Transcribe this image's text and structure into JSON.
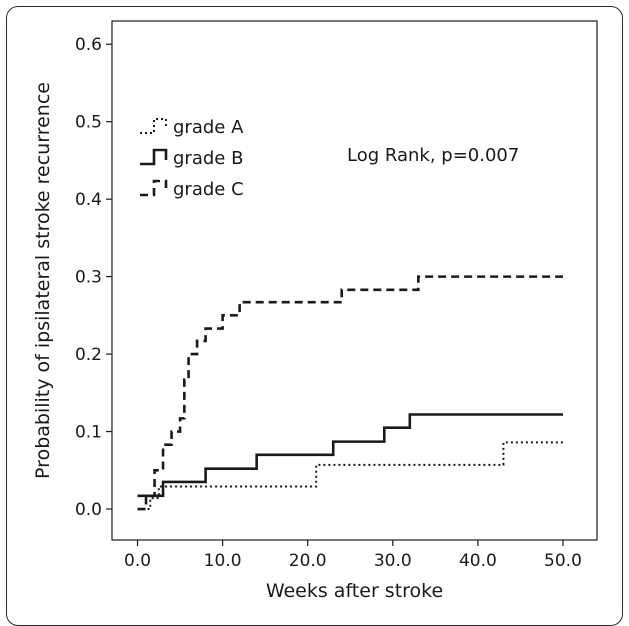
{
  "chart_data": {
    "type": "line",
    "subtype": "kaplan-meier-step",
    "xlabel": "Weeks after stroke",
    "ylabel": "Probability of ipsilateral stroke recurrence",
    "xlim": [
      -3,
      54
    ],
    "ylim": [
      -0.04,
      0.63
    ],
    "x_ticks": [
      0,
      10,
      20,
      30,
      40,
      50
    ],
    "x_tick_labels": [
      "0.0",
      "10.0",
      "20.0",
      "30.0",
      "40.0",
      "50.0"
    ],
    "y_ticks": [
      0.0,
      0.1,
      0.2,
      0.3,
      0.4,
      0.5,
      0.6
    ],
    "y_tick_labels": [
      "0.0",
      "0.1",
      "0.2",
      "0.3",
      "0.4",
      "0.5",
      "0.6"
    ],
    "grid": false,
    "legend_position": "top-left",
    "annotation": "Log Rank, p=0.007",
    "series": [
      {
        "name": "grade A",
        "style": "dotted",
        "color": "#1a1a1a",
        "x": [
          0,
          1.5,
          2.5,
          21,
          43,
          50
        ],
        "y": [
          0.0,
          0.014,
          0.029,
          0.057,
          0.086,
          0.086
        ]
      },
      {
        "name": "grade B",
        "style": "solid",
        "color": "#1a1a1a",
        "x": [
          0,
          3,
          8,
          14,
          23,
          29,
          32,
          50
        ],
        "y": [
          0.017,
          0.035,
          0.052,
          0.07,
          0.087,
          0.105,
          0.122,
          0.122
        ]
      },
      {
        "name": "grade C",
        "style": "dashed",
        "color": "#1a1a1a",
        "x": [
          0,
          1,
          2,
          3,
          4,
          5,
          5.5,
          6,
          7,
          8,
          10,
          12,
          24,
          33,
          50
        ],
        "y": [
          0.0,
          0.017,
          0.05,
          0.083,
          0.1,
          0.117,
          0.167,
          0.2,
          0.217,
          0.233,
          0.25,
          0.267,
          0.283,
          0.3,
          0.3
        ]
      }
    ]
  }
}
